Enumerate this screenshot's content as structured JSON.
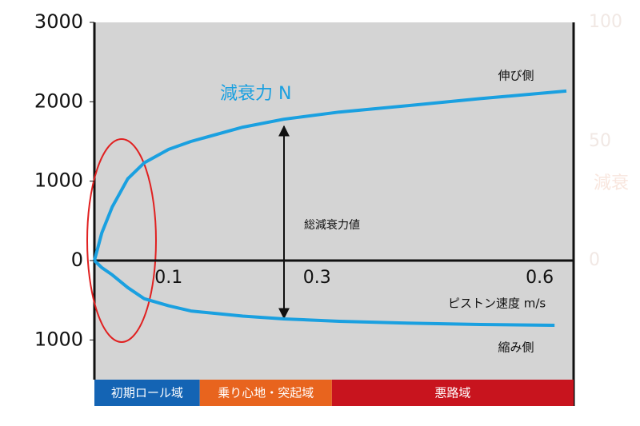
{
  "chart_data": {
    "type": "line",
    "title": "減衰力 N",
    "annotation": "総減衰力値",
    "x_label": "ピストン速度 m/s",
    "y2_label": "減衰",
    "xlim": [
      0,
      0.65
    ],
    "xticks": [
      0.1,
      0.3,
      0.6
    ],
    "ylim": [
      -1500,
      3000
    ],
    "yticks": [
      {
        "value": -1000,
        "label": "1000"
      },
      0,
      1000,
      2000,
      3000
    ],
    "y2lim": [
      -50,
      100
    ],
    "y2ticks": [
      0,
      50,
      100
    ],
    "series": [
      {
        "name": "伸び側",
        "color": "#1aa0e0",
        "x": [
          0,
          0.01,
          0.024,
          0.045,
          0.067,
          0.1,
          0.13,
          0.2,
          0.255,
          0.33,
          0.41,
          0.52,
          0.636
        ],
        "values": [
          0,
          350,
          675,
          1030,
          1230,
          1400,
          1500,
          1680,
          1780,
          1870,
          1940,
          2040,
          2135
        ]
      },
      {
        "name": "縮み側",
        "color": "#1aa0e0",
        "x": [
          0,
          0.01,
          0.024,
          0.045,
          0.067,
          0.1,
          0.13,
          0.2,
          0.255,
          0.33,
          0.41,
          0.52,
          0.62
        ],
        "values": [
          0,
          -90,
          -180,
          -340,
          -480,
          -570,
          -635,
          -700,
          -735,
          -765,
          -785,
          -805,
          -815
        ]
      }
    ],
    "regions": [
      {
        "label": "初期ロール域",
        "color": "#1464b4",
        "from": 0,
        "to": 0.142
      },
      {
        "label": "乗り心地・突起域",
        "color": "#e8641e",
        "from": 0.142,
        "to": 0.32
      },
      {
        "label": "悪路域",
        "color": "#c8141e",
        "from": 0.32,
        "to": 0.65
      }
    ]
  }
}
